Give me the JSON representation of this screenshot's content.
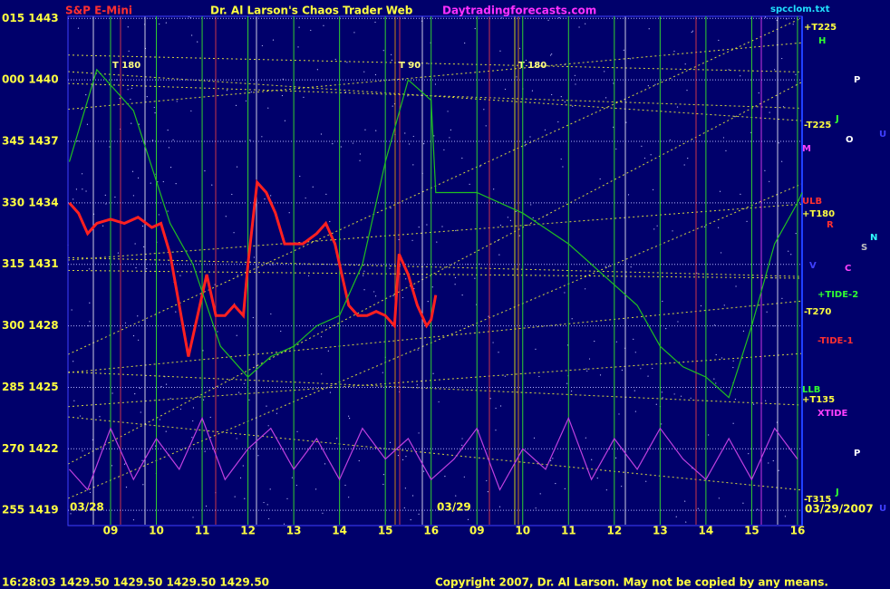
{
  "chart_data": {
    "type": "line",
    "title": "Dr. Al Larson's Chaos Trader Web",
    "subtitle": "S&P E-Mini",
    "site": "Daytradingforecasts.com",
    "file": "spcclom.txt",
    "date_start": "03/28",
    "date_mid": "03/29",
    "date_end": "03/29/2007",
    "status": "16:28:03  1429.50  1429.50  1429.50  1429.50",
    "copyright": "Copyright 2007, Dr. Al Larson. May not be copied by any means.",
    "time_labels": [
      "T 180",
      "T 90",
      "T 180"
    ],
    "right_labels": [
      "+T225",
      "H",
      "P",
      "-T225",
      "J",
      "O",
      "U",
      "M",
      "ULB",
      "+T180",
      "R",
      "N",
      "S",
      "V",
      "C",
      "+TIDE-2",
      "-T270",
      "-TIDE-1",
      "LLB",
      "+T135",
      "XTIDE",
      "P",
      "J",
      "-T315",
      "U"
    ],
    "xlim": [
      8.07,
      24.1
    ],
    "xticks": [
      {
        "value": 9,
        "label": "09"
      },
      10,
      11,
      12,
      13,
      14,
      15,
      16,
      {
        "value": 17,
        "label": "09"
      },
      {
        "value": 18,
        "label": "10"
      },
      {
        "value": 19,
        "label": "11"
      },
      {
        "value": 20,
        "label": "12"
      },
      {
        "value": 21,
        "label": "13"
      },
      {
        "value": 22,
        "label": "14"
      },
      {
        "value": 23,
        "label": "15"
      },
      {
        "value": 24,
        "label": "16"
      }
    ],
    "ylim": [
      1418.3,
      1443.1
    ],
    "yticks": [
      {
        "value": 1443,
        "label": "015 1443"
      },
      {
        "value": 1440,
        "label": "000 1440"
      },
      {
        "value": 1437,
        "label": "345 1437"
      },
      {
        "value": 1434,
        "label": "330 1434"
      },
      {
        "value": 1431,
        "label": "315 1431"
      },
      {
        "value": 1428,
        "label": "300 1428"
      },
      {
        "value": 1425,
        "label": "285 1425"
      },
      {
        "value": 1422,
        "label": "270 1422"
      },
      {
        "value": 1419,
        "label": "255 1419"
      }
    ],
    "grid": true,
    "series": [
      {
        "color": "#ff2020",
        "x": [
          8.1,
          8.3,
          8.5,
          8.7,
          9.0,
          9.3,
          9.6,
          9.9,
          10.1,
          10.3,
          10.5,
          10.7,
          10.9,
          11.1,
          11.3,
          11.5,
          11.7,
          11.9,
          12.0,
          12.2,
          12.4,
          12.6,
          12.8,
          13.0,
          13.2,
          13.5,
          13.7,
          13.9,
          14.0,
          14.2,
          14.4,
          14.6,
          14.8,
          15.0,
          15.2,
          15.3,
          15.5,
          15.7,
          15.9,
          16.0,
          16.1
        ],
        "values": [
          1434,
          1433.5,
          1432.5,
          1433,
          1433.2,
          1433,
          1433.3,
          1432.8,
          1433,
          1431.5,
          1429,
          1426.5,
          1428.5,
          1430.5,
          1428.5,
          1428.5,
          1429,
          1428.5,
          1431,
          1435,
          1434.5,
          1433.5,
          1432,
          1432,
          1432,
          1432.5,
          1433,
          1432,
          1431,
          1429,
          1428.5,
          1428.5,
          1428.7,
          1428.5,
          1428,
          1431.5,
          1430.5,
          1429,
          1428,
          1428.3,
          1429.5
        ]
      },
      {
        "color": "#20c020",
        "x": [
          8.1,
          8.7,
          9.5,
          10.3,
          10.8,
          11.4,
          12.0,
          12.5,
          13.0,
          13.5,
          14.0,
          14.5,
          15.0,
          15.5,
          16.0,
          16.1,
          17.0,
          18.0,
          19.0,
          20.0,
          20.5,
          21.0,
          21.5,
          22.0,
          22.5,
          23.0,
          23.5,
          24.0,
          24.1
        ],
        "values": [
          1436,
          1440.5,
          1438.5,
          1433,
          1431,
          1427,
          1425.5,
          1426.5,
          1427,
          1428,
          1428.5,
          1431,
          1436,
          1440,
          1439,
          1434.5,
          1434.5,
          1433.5,
          1432,
          1430,
          1429,
          1427,
          1426,
          1425.5,
          1424.5,
          1428,
          1432,
          1434,
          1434.5
        ]
      },
      {
        "color": "#c040e0",
        "x": [
          8.1,
          8.5,
          9.0,
          9.5,
          10.0,
          10.5,
          11.0,
          11.5,
          12.0,
          12.5,
          13.0,
          13.5,
          14.0,
          14.5,
          15.0,
          15.5,
          16.0,
          16.5,
          17.0,
          17.5,
          18.0,
          18.5,
          19.0,
          19.5,
          20.0,
          20.5,
          21.0,
          21.5,
          22.0,
          22.5,
          23.0,
          23.5,
          24.0
        ],
        "values": [
          1421,
          1420,
          1423,
          1420.5,
          1422.5,
          1421,
          1423.5,
          1420.5,
          1422,
          1423,
          1421,
          1422.5,
          1420.5,
          1423,
          1421.5,
          1422.5,
          1420.5,
          1421.5,
          1423,
          1420,
          1422,
          1421,
          1423.5,
          1420.5,
          1422.5,
          1421,
          1423,
          1421.5,
          1420.5,
          1422.5,
          1420.5,
          1423,
          1421.5
        ]
      }
    ]
  }
}
